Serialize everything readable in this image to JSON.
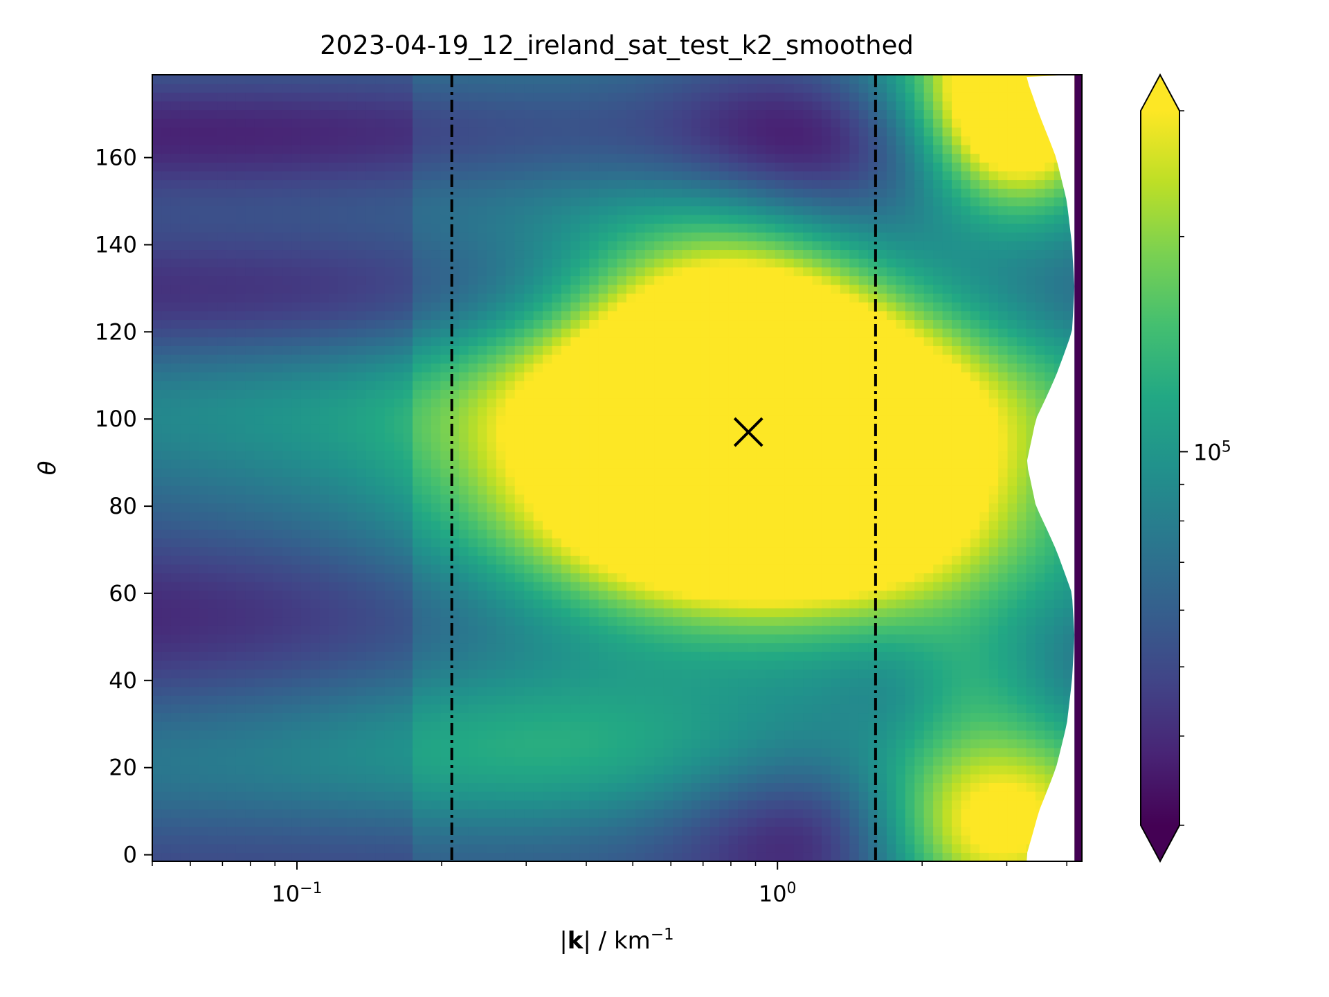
{
  "chart_data": {
    "type": "heatmap",
    "title": "2023-04-19_12_ireland_sat_test_k2_smoothed",
    "xlabel": {
      "prefix": "|",
      "bold": "k",
      "suffix": "| / km",
      "sup": "−1"
    },
    "ylabel": "θ",
    "x_scale": "log",
    "xlim": [
      0.05,
      4.3
    ],
    "ylim": [
      -1.5,
      179
    ],
    "x_ticks": [
      {
        "value": 0.1,
        "base": "10",
        "exp": "−1"
      },
      {
        "value": 1,
        "base": "10",
        "exp": "0"
      }
    ],
    "y_ticks": [
      0,
      20,
      40,
      60,
      80,
      100,
      120,
      140,
      160
    ],
    "colorbar": {
      "scale": "log",
      "extend": "both",
      "colormap": "viridis",
      "range": [
        30000,
        300000
      ],
      "tick": {
        "value": 100000,
        "base": "10",
        "exp": "5"
      }
    },
    "vertical_lines": [
      {
        "x": 0.21,
        "style": "dash-dot",
        "color": "#000000"
      },
      {
        "x": 1.6,
        "style": "dash-dot",
        "color": "#000000"
      }
    ],
    "marker": {
      "x": 0.87,
      "y": 97,
      "symbol": "×",
      "color": "#000000"
    },
    "resolution_limit": {
      "theta": [
        0,
        10,
        20,
        30,
        40,
        50,
        60,
        70,
        80,
        90,
        100,
        110,
        120,
        130,
        140,
        150,
        160,
        170,
        178
      ],
      "k_max": [
        3.3,
        3.5,
        3.8,
        4.0,
        4.1,
        4.15,
        4.1,
        3.8,
        3.45,
        3.3,
        3.45,
        3.8,
        4.1,
        4.15,
        4.1,
        4.0,
        3.8,
        3.5,
        3.3
      ]
    },
    "right_strip": {
      "k": [
        4.15,
        4.3
      ],
      "color": "#440154"
    },
    "blobs": [
      {
        "kc": 0.87,
        "tc": 95,
        "sk": 0.3,
        "st": 24,
        "a": 1.05
      },
      {
        "kc": 0.83,
        "tc": 120,
        "sk": 0.2,
        "st": 20,
        "a": 0.55
      },
      {
        "kc": 0.72,
        "tc": 100,
        "sk": 0.3,
        "st": 30,
        "a": 0.2
      },
      {
        "kc": 1.05,
        "tc": 78,
        "sk": 0.35,
        "st": 15,
        "a": 0.35
      },
      {
        "kc": 0.5,
        "tc": 88,
        "sk": 0.8,
        "st": 35,
        "a": 0.25
      },
      {
        "kc": 0.32,
        "tc": 30,
        "sk": 0.35,
        "st": 15,
        "a": 0.15
      },
      {
        "kc": 2.8,
        "tc": 5,
        "sk": 0.18,
        "st": 14,
        "a": 0.8
      },
      {
        "kc": 3.2,
        "tc": 173,
        "sk": 0.12,
        "st": 15,
        "a": 0.9
      },
      {
        "kc": 2.4,
        "tc": 172,
        "sk": 0.2,
        "st": 18,
        "a": 0.4
      },
      {
        "kc": 2.3,
        "tc": 40,
        "sk": 0.15,
        "st": 12,
        "a": 0.25
      },
      {
        "kc": 2.0,
        "tc": 100,
        "sk": 0.25,
        "st": 35,
        "a": 0.12
      },
      {
        "kc": 1.35,
        "tc": 160,
        "sk": 0.25,
        "st": 18,
        "a": -0.45
      },
      {
        "kc": 1.3,
        "tc": 8,
        "sk": 0.22,
        "st": 14,
        "a": -0.3
      },
      {
        "kc": 1.8,
        "tc": 38,
        "sk": 0.1,
        "st": 10,
        "a": -0.15
      },
      {
        "kc": 0.065,
        "tc": 60,
        "sk": 0.7,
        "st": 12,
        "a": -0.2
      },
      {
        "kc": 0.065,
        "tc": 165,
        "sk": 0.7,
        "st": 10,
        "a": -0.2
      },
      {
        "kc": 0.1,
        "tc": 130,
        "sk": 0.6,
        "st": 12,
        "a": -0.1
      }
    ]
  }
}
